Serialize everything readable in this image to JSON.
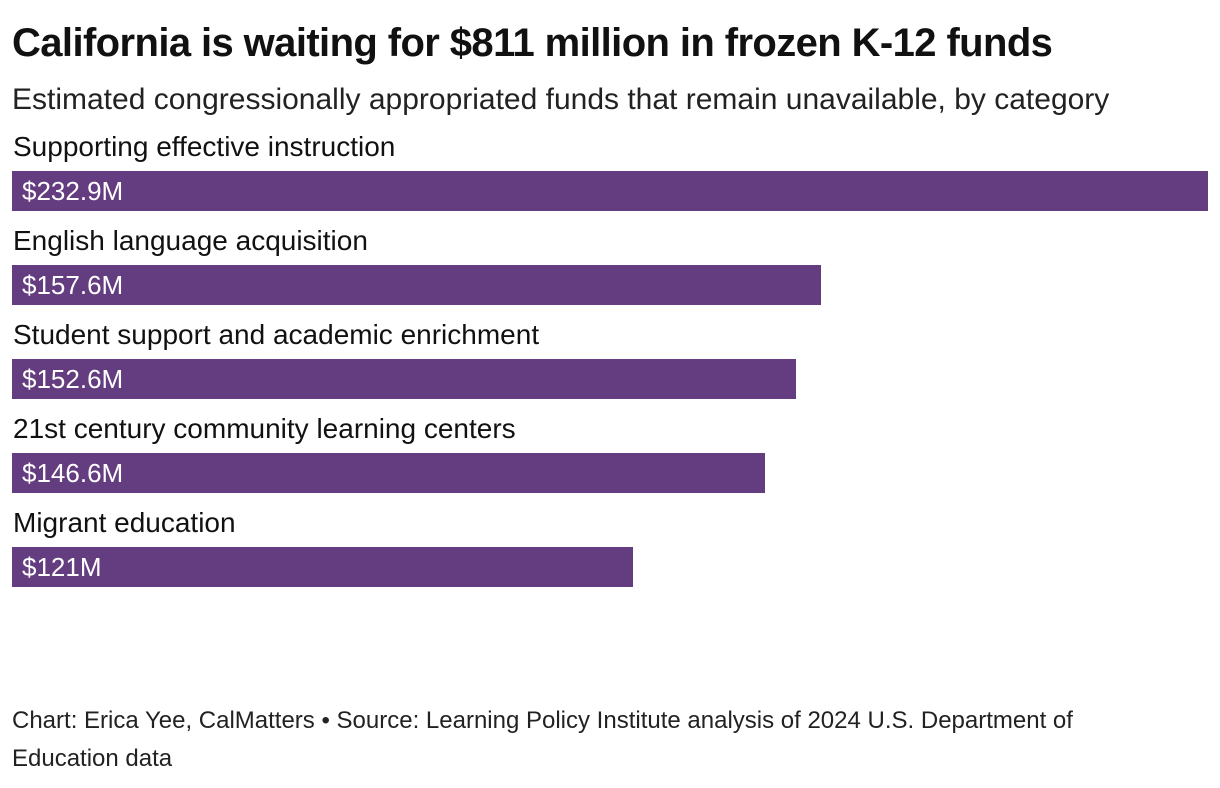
{
  "header": {
    "title": "California is waiting for $811 million in frozen K-12 funds",
    "subtitle": "Estimated congressionally appropriated funds that remain unavailable, by category"
  },
  "footer": {
    "credit": "Chart: Erica Yee, CalMatters • Source: Learning Policy Institute analysis of 2024 U.S. Department of Education data"
  },
  "colors": {
    "bar": "#643c80",
    "value_text": "#ffffff"
  },
  "chart_data": {
    "type": "bar",
    "orientation": "horizontal",
    "title": "California is waiting for $811 million in frozen K-12 funds",
    "subtitle": "Estimated congressionally appropriated funds that remain unavailable, by category",
    "categories": [
      "Supporting effective instruction",
      "English language acquisition",
      "Student support and academic enrichment",
      "21st century community learning centers",
      "Migrant education"
    ],
    "values": [
      232.9,
      157.6,
      152.6,
      146.6,
      121
    ],
    "value_labels": [
      "$232.9M",
      "$157.6M",
      "$152.6M",
      "$146.6M",
      "$121M"
    ],
    "unit": "million USD",
    "xlim": [
      0,
      232.9
    ],
    "grid": false,
    "legend": "none",
    "xlabel": "",
    "ylabel": ""
  }
}
